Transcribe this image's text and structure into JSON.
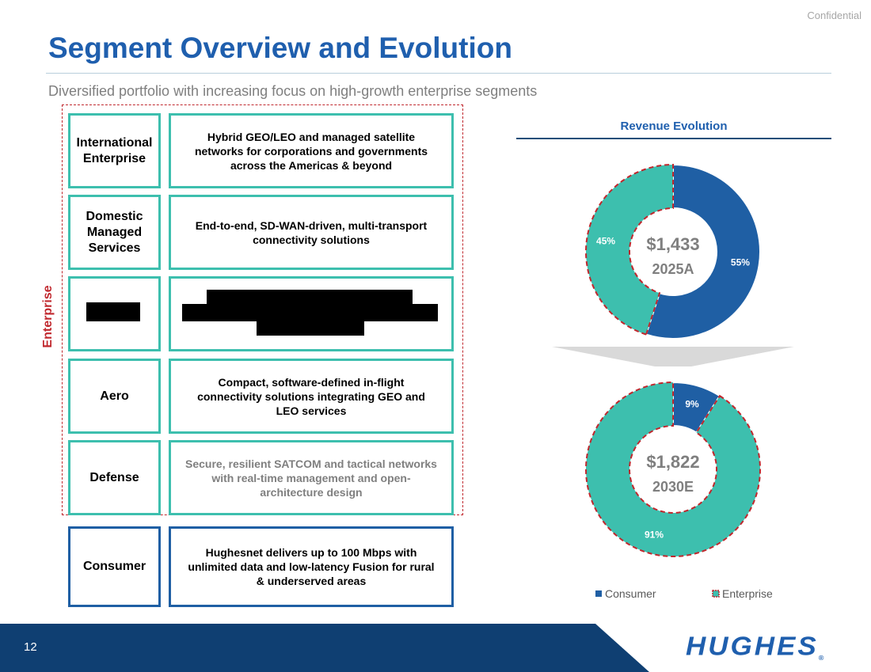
{
  "header": {
    "confidential": "Confidential",
    "title": "Segment Overview and Evolution",
    "subtitle": "Diversified portfolio with increasing focus on high-growth enterprise segments"
  },
  "enterprise_label": "Enterprise",
  "segments": [
    {
      "name": "International Enterprise",
      "description": "Hybrid GEO/LEO and managed satellite networks for corporations and governments across the Americas & beyond"
    },
    {
      "name": "Domestic Managed Services",
      "description": "End-to-end, SD-WAN-driven, multi-transport connectivity solutions"
    },
    {
      "name": "",
      "description": ""
    },
    {
      "name": "Aero",
      "description": "Compact, software-defined in-flight connectivity solutions integrating GEO and LEO services"
    },
    {
      "name": "Defense",
      "description": "Secure, resilient SATCOM and tactical networks with real-time management and open-architecture design"
    },
    {
      "name": "Consumer",
      "description": "Hughesnet delivers up to 100 Mbps with unlimited data and low-latency Fusion for rural & underserved areas"
    }
  ],
  "footer": {
    "page_number": "12",
    "logo_text": "HUGHES",
    "logo_mark": "®"
  },
  "colors": {
    "consumer": "#1f5fa4",
    "enterprise": "#3dbfae",
    "enterprise_outline": "#c0272d"
  },
  "chart_data": {
    "type": "pie",
    "title": "Revenue Evolution",
    "legend": {
      "placement": "bottom",
      "entries": [
        "Consumer",
        "Enterprise"
      ]
    },
    "charts": [
      {
        "total": "$1,433",
        "period": "2025A",
        "slices": [
          {
            "name": "Consumer",
            "value": 55,
            "label": "55%"
          },
          {
            "name": "Enterprise",
            "value": 45,
            "label": "45%"
          }
        ]
      },
      {
        "total": "$1,822",
        "period": "2030E",
        "slices": [
          {
            "name": "Consumer",
            "value": 9,
            "label": "9%"
          },
          {
            "name": "Enterprise",
            "value": 91,
            "label": "91%"
          }
        ]
      }
    ]
  }
}
